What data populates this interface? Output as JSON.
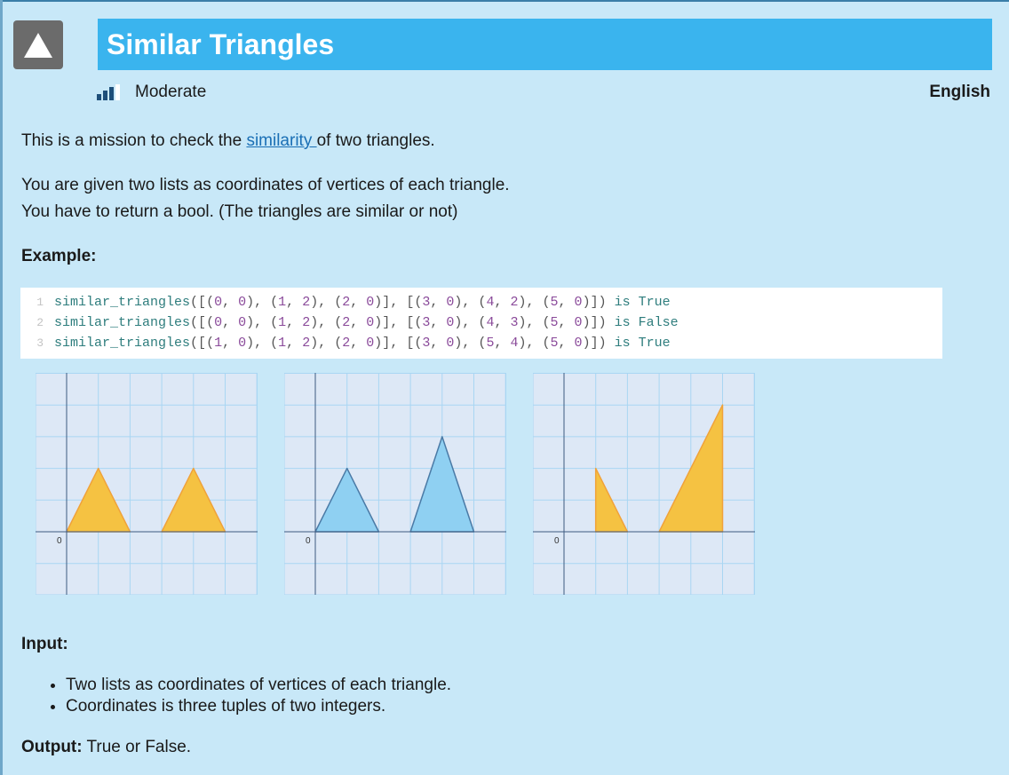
{
  "header": {
    "title": "Similar Triangles",
    "difficulty": "Moderate",
    "language": "English",
    "logo_icon": "triangle-icon"
  },
  "description": {
    "intro_prefix": "This is a mission to check the ",
    "intro_link": "similarity ",
    "intro_suffix": "of two triangles.",
    "line1": "You are given two lists as coordinates of vertices of each triangle.",
    "line2": "You have to return a bool. (The triangles are similar or not)"
  },
  "example": {
    "heading": "Example:",
    "lines": [
      {
        "num": "1",
        "fn": "similar_triangles",
        "args": [
          [
            "(",
            "0",
            ", ",
            "0",
            "), "
          ],
          [
            "(",
            "1",
            ", ",
            "2",
            "), "
          ],
          [
            "(",
            "2",
            ", ",
            "0",
            ")"
          ]
        ],
        "args2": [
          [
            "(",
            "3",
            ", ",
            "0",
            "), "
          ],
          [
            "(",
            "4",
            ", ",
            "2",
            "), "
          ],
          [
            "(",
            "5",
            ", ",
            "0",
            ")"
          ]
        ],
        "is": "is",
        "result": "True"
      },
      {
        "num": "2",
        "fn": "similar_triangles",
        "args": [
          [
            "(",
            "0",
            ", ",
            "0",
            "), "
          ],
          [
            "(",
            "1",
            ", ",
            "2",
            "), "
          ],
          [
            "(",
            "2",
            ", ",
            "0",
            ")"
          ]
        ],
        "args2": [
          [
            "(",
            "3",
            ", ",
            "0",
            "), "
          ],
          [
            "(",
            "4",
            ", ",
            "3",
            "), "
          ],
          [
            "(",
            "5",
            ", ",
            "0",
            ")"
          ]
        ],
        "is": "is",
        "result": "False"
      },
      {
        "num": "3",
        "fn": "similar_triangles",
        "args": [
          [
            "(",
            "1",
            ", ",
            "0",
            "), "
          ],
          [
            "(",
            "1",
            ", ",
            "2",
            "), "
          ],
          [
            "(",
            "2",
            ", ",
            "0",
            ")"
          ]
        ],
        "args2": [
          [
            "(",
            "3",
            ", ",
            "0",
            "), "
          ],
          [
            "(",
            "5",
            ", ",
            "4",
            "), "
          ],
          [
            "(",
            "5",
            ", ",
            "0",
            ")"
          ]
        ],
        "is": "is",
        "result": "True"
      }
    ]
  },
  "plots": [
    {
      "origin_label": "0",
      "fill": "#f5c242",
      "stroke": "#f0a23a",
      "triangles": [
        [
          [
            0,
            0
          ],
          [
            1,
            2
          ],
          [
            2,
            0
          ]
        ],
        [
          [
            3,
            0
          ],
          [
            4,
            2
          ],
          [
            5,
            0
          ]
        ]
      ]
    },
    {
      "origin_label": "0",
      "fill": "#8fd0f2",
      "stroke": "#4a7aa6",
      "triangles": [
        [
          [
            0,
            0
          ],
          [
            1,
            2
          ],
          [
            2,
            0
          ]
        ],
        [
          [
            3,
            0
          ],
          [
            4,
            3
          ],
          [
            5,
            0
          ]
        ]
      ]
    },
    {
      "origin_label": "0",
      "fill": "#f5c242",
      "stroke": "#f0a23a",
      "triangles": [
        [
          [
            1,
            0
          ],
          [
            1,
            2
          ],
          [
            2,
            0
          ]
        ],
        [
          [
            3,
            0
          ],
          [
            5,
            4
          ],
          [
            5,
            0
          ]
        ]
      ]
    }
  ],
  "input": {
    "heading": "Input:",
    "items": [
      "Two lists as coordinates of vertices of each triangle.",
      "Coordinates is three tuples of two integers."
    ]
  },
  "output": {
    "heading": "Output:",
    "text": " True or False."
  },
  "colors": {
    "background": "#c8e8f8",
    "title_bar": "#3ab4ee",
    "link": "#1a6fb5",
    "grid_bg": "#dde8f6",
    "grid_line": "#a9d6f3",
    "axis": "#3d5a80"
  }
}
